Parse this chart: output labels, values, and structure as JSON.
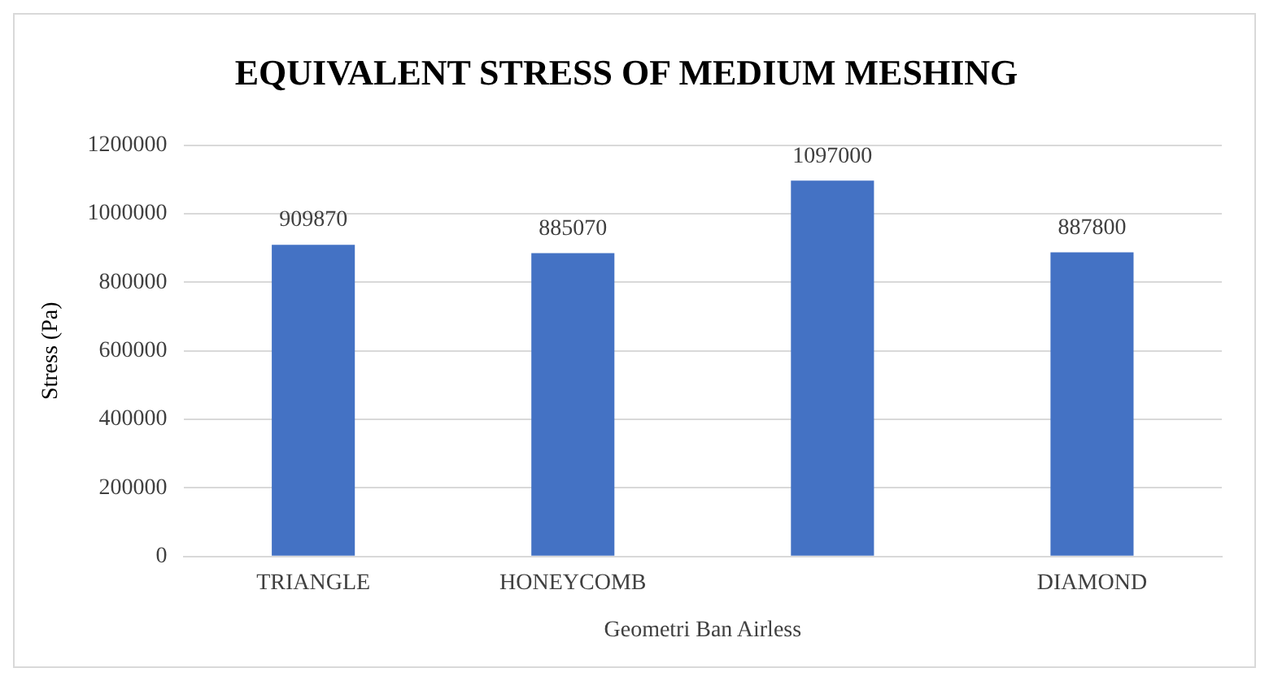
{
  "chart_data": {
    "type": "bar",
    "title": "EQUIVALENT STRESS OF MEDIUM MESHING",
    "xlabel": "Geometri Ban Airless",
    "ylabel": "Stress (Pa)",
    "categories": [
      "TRIANGLE",
      "HONEYCOMB",
      null,
      "DIAMOND"
    ],
    "values": [
      909870,
      885070,
      1097000,
      887800
    ],
    "color": "#4472c4",
    "ylim": [
      0,
      1200000
    ],
    "yticks": [
      0,
      200000,
      400000,
      600000,
      800000,
      1000000,
      1200000
    ],
    "grid": "y",
    "data_labels": true
  }
}
